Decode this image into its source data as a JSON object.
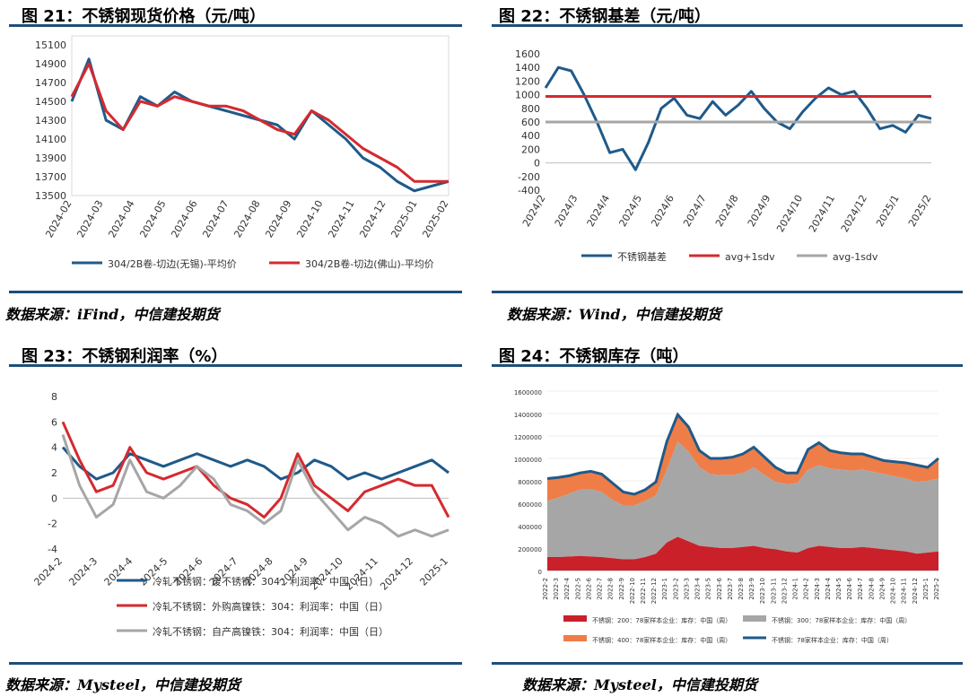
{
  "charts": [
    {
      "title": "图 21：不锈钢现货价格（元/吨）",
      "source": "数据来源：iFind，中信建投期货",
      "chart_data": {
        "type": "line",
        "yticks": [
          13500,
          13700,
          13900,
          14100,
          14300,
          14500,
          14700,
          14900,
          15100
        ],
        "ylim": [
          13500,
          15100
        ],
        "xticks": [
          "2024-02",
          "2024-03",
          "2024-04",
          "2024-05",
          "2024-06",
          "2024-07",
          "2024-08",
          "2024-09",
          "2024-10",
          "2024-11",
          "2024-12",
          "2025-01",
          "2025-02"
        ],
        "series": [
          {
            "name": "304/2B卷-切边(无锡)-平均价",
            "color": "#1f5a8a",
            "values": [
              14500,
              14950,
              14300,
              14200,
              14550,
              14450,
              14600,
              14500,
              14450,
              14400,
              14350,
              14300,
              14250,
              14100,
              14400,
              14250,
              14100,
              13900,
              13800,
              13650,
              13550,
              13600,
              13650
            ]
          },
          {
            "name": "304/2B卷-切边(佛山)-平均价",
            "color": "#d42a2f",
            "values": [
              14550,
              14900,
              14400,
              14200,
              14500,
              14450,
              14550,
              14500,
              14450,
              14450,
              14400,
              14300,
              14200,
              14150,
              14400,
              14300,
              14150,
              14000,
              13900,
              13800,
              13650,
              13650,
              13650
            ]
          }
        ]
      }
    },
    {
      "title": "图 22：不锈钢基差（元/吨）",
      "source": "数据来源：Wind，中信建投期货",
      "chart_data": {
        "type": "line",
        "yticks": [
          -400,
          -200,
          0,
          200,
          400,
          600,
          800,
          1000,
          1200,
          1400,
          1600
        ],
        "ylim": [
          -400,
          1600
        ],
        "xticks": [
          "2024/2",
          "2024/3",
          "2024/4",
          "2024/5",
          "2024/6",
          "2024/7",
          "2024/8",
          "2024/9",
          "2024/10",
          "2024/11",
          "2024/12",
          "2025/1",
          "2025/2"
        ],
        "series": [
          {
            "name": "不锈钢基差",
            "color": "#1f5a8a",
            "values": [
              1100,
              1400,
              1350,
              1000,
              600,
              150,
              200,
              -100,
              300,
              800,
              950,
              700,
              650,
              900,
              700,
              850,
              1050,
              800,
              600,
              500,
              750,
              950,
              1100,
              1000,
              1050,
              800,
              500,
              550,
              450,
              700,
              650
            ]
          },
          {
            "name": "avg+1sdv",
            "color": "#d42a2f",
            "values": [
              975,
              975
            ]
          },
          {
            "name": "avg-1sdv",
            "color": "#a6a6a6",
            "values": [
              600,
              600
            ]
          }
        ]
      }
    },
    {
      "title": "图 23：不锈钢利润率（%）",
      "source": "数据来源：Mysteel，中信建投期货",
      "chart_data": {
        "type": "line",
        "yticks": [
          -4,
          -2,
          0,
          2,
          4,
          6,
          8
        ],
        "ylim": [
          -4,
          8
        ],
        "xticks": [
          "2024-2",
          "2024-3",
          "2024-4",
          "2024-5",
          "2024-6",
          "2024-7",
          "2024-8",
          "2024-9",
          "2024-10",
          "2024-11",
          "2024-12",
          "2025-1"
        ],
        "series": [
          {
            "name": "冷轧不锈钢：废不锈钢：304：利润率：中国（日）",
            "color": "#1f5a8a",
            "values": [
              4,
              2.5,
              1.5,
              2,
              3.5,
              3,
              2.5,
              3,
              3.5,
              3,
              2.5,
              3,
              2.5,
              1.5,
              2,
              3,
              2.5,
              1.5,
              2,
              1.5,
              2,
              2.5,
              3,
              2
            ]
          },
          {
            "name": "冷轧不锈钢：外购高镍铁：304：利润率：中国（日）",
            "color": "#d42a2f",
            "values": [
              6,
              3,
              0.5,
              1,
              4,
              2,
              1.5,
              2,
              2.5,
              1,
              0,
              -0.5,
              -1.5,
              0,
              3.5,
              1,
              0,
              -1,
              0.5,
              1,
              1.5,
              1,
              1,
              -1.5
            ]
          },
          {
            "name": "冷轧不锈钢：自产高镍铁：304：利润率：中国（日）",
            "color": "#a6a6a6",
            "values": [
              5,
              1,
              -1.5,
              -0.5,
              3,
              0.5,
              0,
              1,
              2.5,
              1.5,
              -0.5,
              -1,
              -2,
              -1,
              3,
              0.5,
              -1,
              -2.5,
              -1.5,
              -2,
              -3,
              -2.5,
              -3,
              -2.5
            ]
          }
        ]
      }
    },
    {
      "title": "图 24：不锈钢库存（吨）",
      "source": "数据来源：Mysteel，中信建投期货",
      "chart_data": {
        "type": "area",
        "yticks": [
          "0",
          "200000",
          "400000",
          "600000",
          "800000",
          "1000000",
          "1200000",
          "1400000",
          "1600000"
        ],
        "ylim": [
          0,
          1600000
        ],
        "xticks": [
          "2022-2",
          "2022-3",
          "2022-4",
          "2022-5",
          "2022-6",
          "2022-7",
          "2022-8",
          "2022-9",
          "2022-10",
          "2022-11",
          "2022-12",
          "2023-1",
          "2023-2",
          "2023-3",
          "2023-4",
          "2023-5",
          "2023-6",
          "2023-7",
          "2023-8",
          "2023-9",
          "2023-10",
          "2023-11",
          "2023-12",
          "2024-1",
          "2024-2",
          "2024-3",
          "2024-4",
          "2024-5",
          "2024-6",
          "2024-7",
          "2024-8",
          "2024-9",
          "2024-10",
          "2024-11",
          "2024-12",
          "2025-1",
          "2025-2"
        ],
        "series": [
          {
            "name": "不锈钢：200：78家样本企业：库存：中国（周）",
            "color": "#c9202a",
            "values": [
              120000,
              120000,
              125000,
              130000,
              125000,
              120000,
              110000,
              100000,
              100000,
              120000,
              150000,
              250000,
              300000,
              260000,
              220000,
              210000,
              200000,
              200000,
              210000,
              220000,
              200000,
              190000,
              170000,
              160000,
              200000,
              220000,
              210000,
              200000,
              200000,
              210000,
              200000,
              190000,
              180000,
              170000,
              150000,
              160000,
              170000
            ]
          },
          {
            "name": "不锈钢：300：78家样本企业：库存：中国（周）",
            "color": "#a6a6a6",
            "values": [
              500000,
              530000,
              560000,
              590000,
              600000,
              580000,
              520000,
              480000,
              480000,
              500000,
              520000,
              650000,
              850000,
              800000,
              700000,
              650000,
              650000,
              650000,
              660000,
              700000,
              650000,
              600000,
              600000,
              620000,
              700000,
              720000,
              700000,
              700000,
              690000,
              690000,
              680000,
              670000,
              660000,
              650000,
              640000,
              640000,
              650000
            ]
          },
          {
            "name": "不锈钢：400：78家样本企业：库存：中国（周）",
            "color": "#ef7d48",
            "values": [
              200000,
              180000,
              160000,
              150000,
              160000,
              160000,
              150000,
              120000,
              100000,
              100000,
              120000,
              250000,
              240000,
              220000,
              150000,
              140000,
              150000,
              160000,
              170000,
              180000,
              160000,
              130000,
              100000,
              90000,
              180000,
              200000,
              160000,
              150000,
              150000,
              140000,
              130000,
              120000,
              130000,
              140000,
              150000,
              120000,
              180000
            ]
          },
          {
            "name": "不锈钢：78家样本企业：库存：中国（周）",
            "color": "#1f5a8a",
            "values": [
              820000,
              830000,
              845000,
              870000,
              885000,
              860000,
              780000,
              700000,
              680000,
              720000,
              790000,
              1150000,
              1390000,
              1280000,
              1070000,
              1000000,
              1000000,
              1010000,
              1040000,
              1100000,
              1010000,
              920000,
              870000,
              870000,
              1080000,
              1140000,
              1070000,
              1050000,
              1040000,
              1040000,
              1010000,
              980000,
              970000,
              960000,
              940000,
              920000,
              1000000
            ]
          }
        ]
      }
    }
  ]
}
